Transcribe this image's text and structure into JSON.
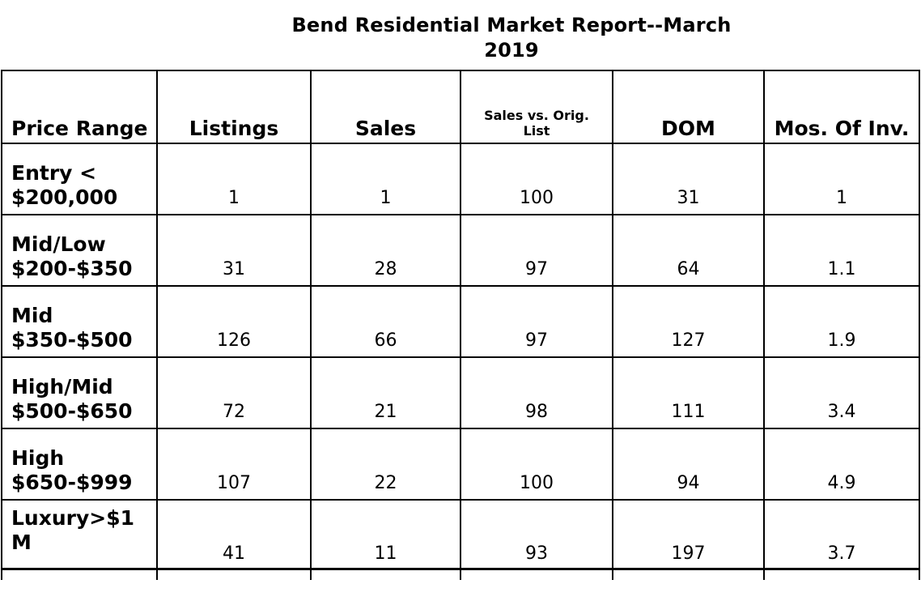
{
  "title": {
    "full": "Bend Residential Market Report--March 2019",
    "line1": "Bend Residential Market Report--March",
    "line2": "2019"
  },
  "table": {
    "header": {
      "price_range": "Price Range",
      "listings": "Listings",
      "sales": "Sales",
      "sales_vs_orig_list": "Sales vs. Orig. List",
      "dom": "DOM",
      "mos_of_inv": "Mos. Of Inv."
    },
    "rows": [
      {
        "label": "Entry < $200,000",
        "listings": "1",
        "sales": "1",
        "sales_vs_orig_list": "100",
        "dom": "31",
        "mos_of_inv": "1"
      },
      {
        "label": "Mid/Low $200-$350",
        "listings": "31",
        "sales": "28",
        "sales_vs_orig_list": "97",
        "dom": "64",
        "mos_of_inv": "1.1"
      },
      {
        "label": "Mid $350-$500",
        "listings": "126",
        "sales": "66",
        "sales_vs_orig_list": "97",
        "dom": "127",
        "mos_of_inv": "1.9"
      },
      {
        "label": "High/Mid $500-$650",
        "listings": "72",
        "sales": "21",
        "sales_vs_orig_list": "98",
        "dom": "111",
        "mos_of_inv": "3.4"
      },
      {
        "label": "High $650-$999",
        "listings": "107",
        "sales": "22",
        "sales_vs_orig_list": "100",
        "dom": "94",
        "mos_of_inv": "4.9"
      },
      {
        "label": "Luxury>$1 M",
        "listings": "41",
        "sales": "11",
        "sales_vs_orig_list": "93",
        "dom": "197",
        "mos_of_inv": "3.7"
      }
    ]
  },
  "chart_data": {
    "type": "table",
    "title": "Bend Residential Market Report--March 2019",
    "columns": [
      "Price Range",
      "Listings",
      "Sales",
      "Sales vs. Orig. List",
      "DOM",
      "Mos. Of Inv."
    ],
    "rows": [
      [
        "Entry < $200,000",
        1,
        1,
        100,
        31,
        1
      ],
      [
        "Mid/Low $200-$350",
        31,
        28,
        97,
        64,
        1.1
      ],
      [
        "Mid $350-$500",
        126,
        66,
        97,
        127,
        1.9
      ],
      [
        "High/Mid $500-$650",
        72,
        21,
        98,
        111,
        3.4
      ],
      [
        "High $650-$999",
        107,
        22,
        100,
        94,
        4.9
      ],
      [
        "Luxury>$1 M",
        41,
        11,
        93,
        197,
        3.7
      ]
    ]
  },
  "colors": {
    "text": "#000000",
    "border": "#000000",
    "background": "#ffffff"
  }
}
